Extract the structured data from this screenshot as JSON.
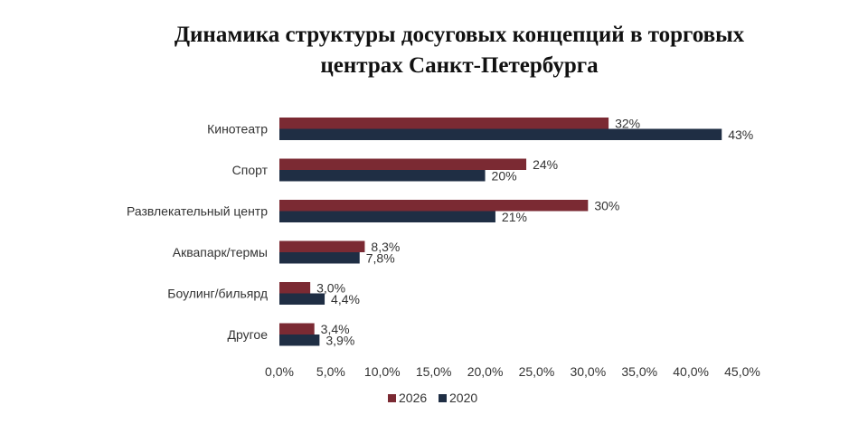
{
  "chart_data": {
    "type": "bar",
    "orientation": "horizontal",
    "title_lines": [
      "Динамика структуры досуговых концепций в торговых",
      "центрах Санкт-Петербурга"
    ],
    "categories": [
      "Кинотеатр",
      "Спорт",
      "Развлекательный центр",
      "Аквапарк/термы",
      "Боулинг/бильярд",
      "Другое"
    ],
    "series": [
      {
        "name": "2026",
        "color": "#7b2a33",
        "values": [
          32,
          24,
          30,
          8.3,
          3.0,
          3.4
        ],
        "labels": [
          "32%",
          "24%",
          "30%",
          "8,3%",
          "3,0%",
          "3,4%"
        ]
      },
      {
        "name": "2020",
        "color": "#1f2e44",
        "values": [
          43,
          20,
          21,
          7.8,
          4.4,
          3.9
        ],
        "labels": [
          "43%",
          "20%",
          "21%",
          "7,8%",
          "4,4%",
          "3,9%"
        ]
      }
    ],
    "xlim": [
      0,
      45
    ],
    "xticks": [
      0,
      5,
      10,
      15,
      20,
      25,
      30,
      35,
      40,
      45
    ],
    "xtick_labels": [
      "0,0%",
      "5,0%",
      "10,0%",
      "15,0%",
      "20,0%",
      "25,0%",
      "30,0%",
      "35,0%",
      "40,0%",
      "45,0%"
    ],
    "grid": false,
    "legend_position": "bottom-center",
    "legend_labels": [
      "2026",
      "2020"
    ]
  }
}
